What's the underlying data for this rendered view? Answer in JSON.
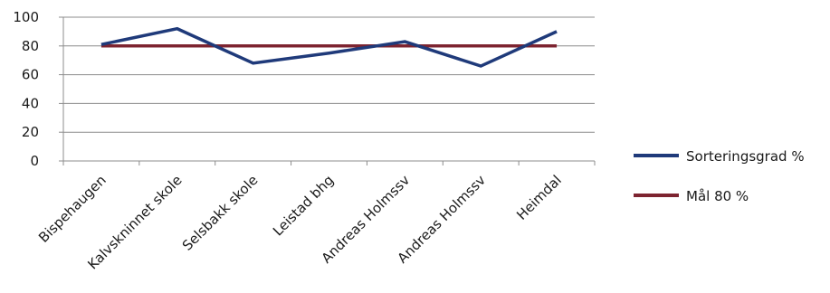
{
  "chart_data": {
    "type": "line",
    "categories": [
      "Bispehaugen",
      "Kalvskninnet skole",
      "Selsbakk skole",
      "Leistad bhg",
      "Andreas Holmssv",
      "Andreas Holmssv",
      "Heimdal"
    ],
    "series": [
      {
        "name": "Sorteringsgrad %",
        "values": [
          81,
          92,
          68,
          75,
          83,
          66,
          90
        ],
        "color": "#1f3a7a"
      },
      {
        "name": "Mål 80 %",
        "values": [
          80,
          80,
          80,
          80,
          80,
          80,
          80
        ],
        "color": "#7d2430"
      }
    ],
    "ylim": [
      0,
      100
    ],
    "yticks": [
      0,
      20,
      40,
      60,
      80,
      100
    ],
    "grid": true,
    "legend_position": "right",
    "title": "",
    "xlabel": "",
    "ylabel": ""
  }
}
